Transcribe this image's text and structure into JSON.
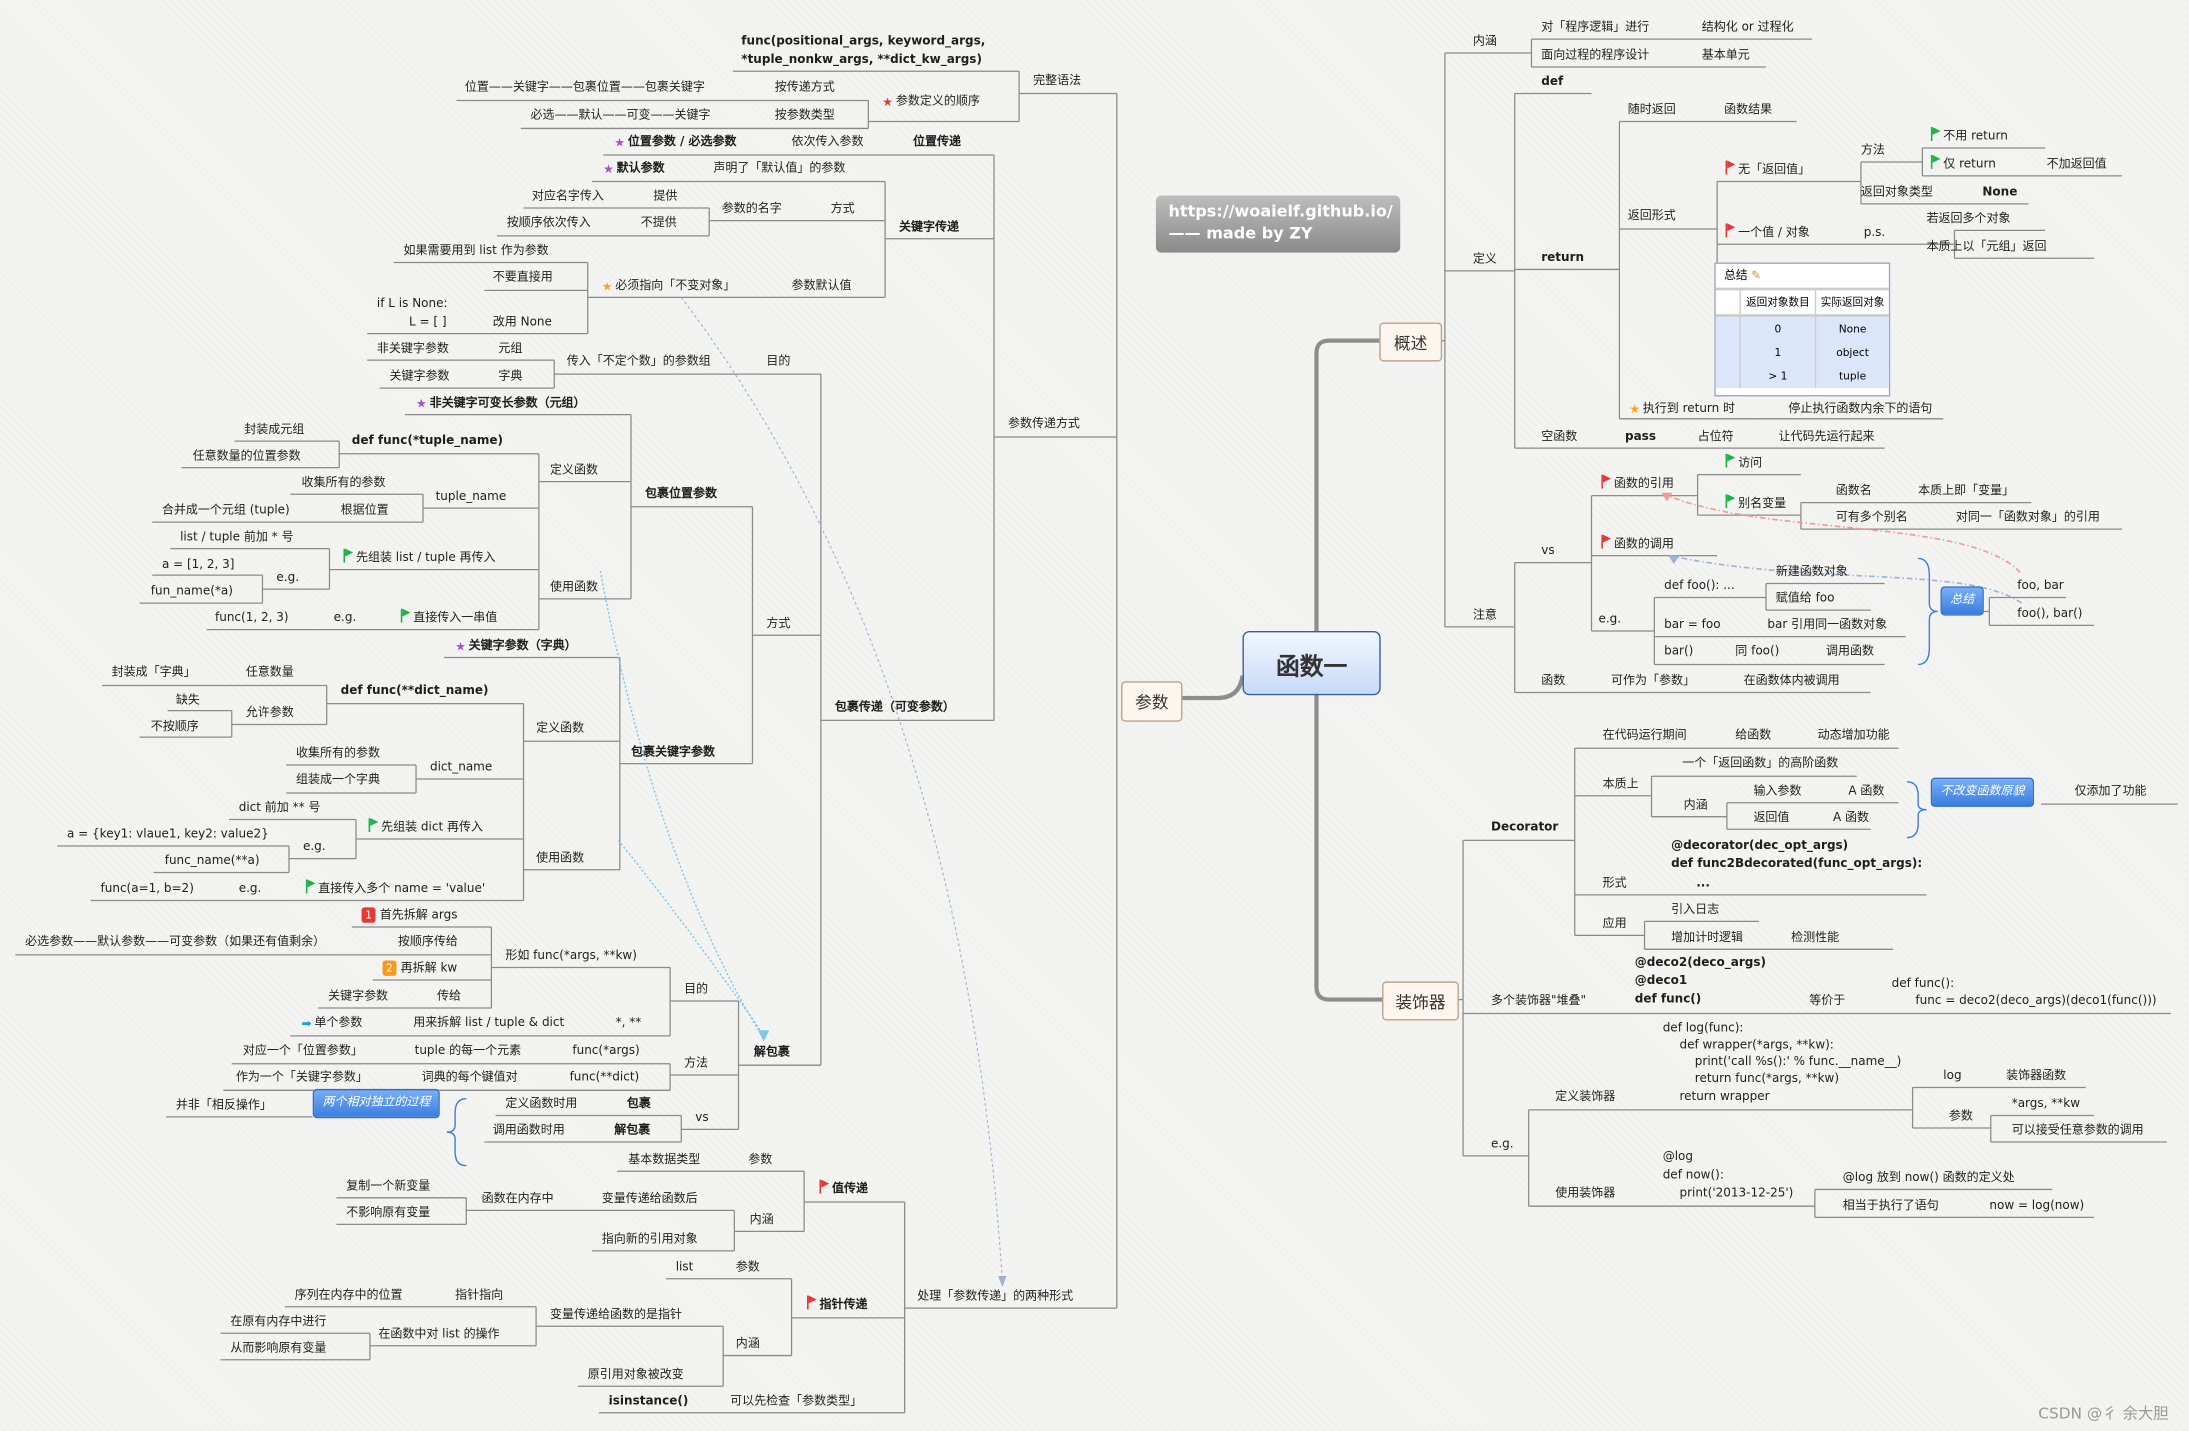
{
  "center": {
    "title": "函数一"
  },
  "banner": {
    "line1": "https://woaielf.github.io/",
    "line2": "—— made by ZY"
  },
  "branches": {
    "overview": "概述",
    "params": "参数",
    "decorator": "装饰器"
  },
  "watermark": "CSDN @彳 余大胆",
  "colors": {
    "center_border": "#3b5c9a",
    "connector": "#8a8a8a",
    "blue_box": "#3a7de0",
    "flag_red": "#e53935",
    "flag_green": "#1bb34a",
    "star_purple": "#a84fd6"
  },
  "params": {
    "nodes": [
      {
        "text": "func(positional_args, keyword_args,"
      },
      {
        "text": "*tuple_nonkw_args, **dict_kw_args)"
      },
      {
        "text": "完整语法"
      },
      {
        "text": "位置——关键字——包裹位置——包裹关键字"
      },
      {
        "text": "按传递方式"
      },
      {
        "text": "必选——默认——可变——关键字"
      },
      {
        "text": "按参数类型"
      },
      {
        "text": "参数定义的顺序",
        "icon": "star-red"
      },
      {
        "text": "位置参数 / 必选参数",
        "icon": "star-purple"
      },
      {
        "text": "依次传入参数"
      },
      {
        "text": "位置传递"
      },
      {
        "text": "默认参数",
        "icon": "star-purple"
      },
      {
        "text": "声明了「默认值」的参数"
      },
      {
        "text": "对应名字传入"
      },
      {
        "text": "提供"
      },
      {
        "text": "按顺序依次传入"
      },
      {
        "text": "不提供"
      },
      {
        "text": "参数的名字"
      },
      {
        "text": "方式"
      },
      {
        "text": "如果需要用到 list 作为参数"
      },
      {
        "text": "不要直接用"
      },
      {
        "text": "if L is None:"
      },
      {
        "text": "L = [ ]"
      },
      {
        "text": "改用 None"
      },
      {
        "text": "必须指向「不变对象」",
        "icon": "star-yellow"
      },
      {
        "text": "参数默认值"
      },
      {
        "text": "关键字传递"
      },
      {
        "text": "参数传递方式"
      },
      {
        "text": "非关键字参数"
      },
      {
        "text": "元组"
      },
      {
        "text": "关键字参数"
      },
      {
        "text": "字典"
      },
      {
        "text": "传入「不定个数」的参数组"
      },
      {
        "text": "目的"
      },
      {
        "text": "非关键字可变长参数（元组）",
        "icon": "star-purple"
      },
      {
        "text": "封装成元组"
      },
      {
        "text": "任意数量的位置参数"
      },
      {
        "text": "def func(*tuple_name)"
      },
      {
        "text": "收集所有的参数"
      },
      {
        "text": "合并成一个元组 (tuple)"
      },
      {
        "text": "根据位置"
      },
      {
        "text": "tuple_name"
      },
      {
        "text": "定义函数"
      },
      {
        "text": "list / tuple 前加 * 号"
      },
      {
        "text": "a = [1, 2, 3]"
      },
      {
        "text": "fun_name(*a)"
      },
      {
        "text": "e.g."
      },
      {
        "text": "先组装 list / tuple 再传入",
        "icon": "flag-green"
      },
      {
        "text": "func(1, 2, 3)"
      },
      {
        "text": "e.g."
      },
      {
        "text": "直接传入一串值",
        "icon": "flag-green"
      },
      {
        "text": "使用函数"
      },
      {
        "text": "包裹位置参数"
      },
      {
        "text": "关键字参数（字典）",
        "icon": "star-purple"
      },
      {
        "text": "封装成「字典」"
      },
      {
        "text": "任意数量"
      },
      {
        "text": "缺失"
      },
      {
        "text": "不按顺序"
      },
      {
        "text": "允许参数"
      },
      {
        "text": "def func(**dict_name)"
      },
      {
        "text": "收集所有的参数"
      },
      {
        "text": "组装成一个字典"
      },
      {
        "text": "dict_name"
      },
      {
        "text": "定义函数"
      },
      {
        "text": "dict 前加 ** 号"
      },
      {
        "text": "a = {key1: vlaue1, key2: value2}"
      },
      {
        "text": "func_name(**a)"
      },
      {
        "text": "e.g."
      },
      {
        "text": "先组装 dict 再传入",
        "icon": "flag-green"
      },
      {
        "text": "func(a=1, b=2)"
      },
      {
        "text": "e.g."
      },
      {
        "text": "直接传入多个 name = 'value'",
        "icon": "flag-green"
      },
      {
        "text": "使用函数"
      },
      {
        "text": "包裹关键字参数"
      },
      {
        "text": "方式"
      },
      {
        "text": "包裹传递（可变参数）"
      },
      {
        "text": "首先拆解 args",
        "icon": "badge-1",
        "badge": "1"
      },
      {
        "text": "必选参数——默认参数——可变参数（如果还有值剩余）"
      },
      {
        "text": "按顺序传给"
      },
      {
        "text": "再拆解 kw",
        "icon": "badge-2",
        "badge": "2"
      },
      {
        "text": "关键字参数"
      },
      {
        "text": "传给"
      },
      {
        "text": "形如 func(*args, **kw)"
      },
      {
        "text": "单个参数",
        "icon": "arrow-blue"
      },
      {
        "text": "用来拆解 list / tuple & dict"
      },
      {
        "text": "*, **"
      },
      {
        "text": "目的"
      },
      {
        "text": "对应一个「位置参数」"
      },
      {
        "text": "tuple 的每一个元素"
      },
      {
        "text": "func(*args)"
      },
      {
        "text": "作为一个「关键字参数」"
      },
      {
        "text": "词典的每个键值对"
      },
      {
        "text": "func(**dict)"
      },
      {
        "text": "方法"
      },
      {
        "text": "并非「相反操作」"
      },
      {
        "text": "两个相对独立的过程"
      },
      {
        "text": "定义函数时用"
      },
      {
        "text": "包裹"
      },
      {
        "text": "调用函数时用"
      },
      {
        "text": "解包裹"
      },
      {
        "text": "vs"
      },
      {
        "text": "解包裹"
      },
      {
        "text": "基本数据类型"
      },
      {
        "text": "参数"
      },
      {
        "text": "复制一个新变量"
      },
      {
        "text": "不影响原有变量"
      },
      {
        "text": "函数在内存中"
      },
      {
        "text": "变量传递给函数后"
      },
      {
        "text": "指向新的引用对象"
      },
      {
        "text": "内涵"
      },
      {
        "text": "值传递",
        "icon": "flag-red"
      },
      {
        "text": "list"
      },
      {
        "text": "参数"
      },
      {
        "text": "序列在内存中的位置"
      },
      {
        "text": "指针指向"
      },
      {
        "text": "在原有内存中进行"
      },
      {
        "text": "从而影响原有变量"
      },
      {
        "text": "在函数中对 list 的操作"
      },
      {
        "text": "变量传递给函数的是指针"
      },
      {
        "text": "原引用对象被改变"
      },
      {
        "text": "内涵"
      },
      {
        "text": "指针传递",
        "icon": "flag-red"
      },
      {
        "text": "isinstance()"
      },
      {
        "text": "可以先检查「参数类型」"
      },
      {
        "text": "处理「参数传递」的两种形式"
      }
    ]
  },
  "overview": {
    "nodes": [
      {
        "text": "内涵"
      },
      {
        "text": "对「程序逻辑」进行"
      },
      {
        "text": "结构化 or 过程化"
      },
      {
        "text": "面向过程的程序设计"
      },
      {
        "text": "基本单元"
      },
      {
        "text": "定义"
      },
      {
        "text": "def"
      },
      {
        "text": "return"
      },
      {
        "text": "随时返回"
      },
      {
        "text": "函数结果"
      },
      {
        "text": "返回形式"
      },
      {
        "text": "无「返回值」",
        "icon": "flag-red"
      },
      {
        "text": "方法"
      },
      {
        "text": "不用 return",
        "icon": "flag-green"
      },
      {
        "text": "仅 return",
        "icon": "flag-green"
      },
      {
        "text": "不加返回值"
      },
      {
        "text": "返回对象类型"
      },
      {
        "text": "None"
      },
      {
        "text": "一个值 / 对象",
        "icon": "flag-red"
      },
      {
        "text": "p.s."
      },
      {
        "text": "若返回多个对象"
      },
      {
        "text": "本质上以「元组」返回"
      },
      {
        "text": "执行到 return 时",
        "icon": "star-yellow"
      },
      {
        "text": "停止执行函数内余下的语句"
      },
      {
        "text": "空函数"
      },
      {
        "text": "pass"
      },
      {
        "text": "占位符"
      },
      {
        "text": "让代码先运行起来"
      },
      {
        "text": "注意"
      },
      {
        "text": "vs"
      },
      {
        "text": "函数的引用",
        "icon": "flag-red"
      },
      {
        "text": "访问",
        "icon": "flag-green"
      },
      {
        "text": "别名变量",
        "icon": "flag-green"
      },
      {
        "text": "函数名"
      },
      {
        "text": "本质上即「变量」"
      },
      {
        "text": "可有多个别名"
      },
      {
        "text": "对同一「函数对象」的引用"
      },
      {
        "text": "函数的调用",
        "icon": "flag-red"
      },
      {
        "text": "e.g."
      },
      {
        "text": "def foo(): ..."
      },
      {
        "text": "新建函数对象"
      },
      {
        "text": "赋值给 foo"
      },
      {
        "text": "bar = foo"
      },
      {
        "text": "bar 引用同一函数对象"
      },
      {
        "text": "bar()"
      },
      {
        "text": "同 foo()"
      },
      {
        "text": "调用函数"
      },
      {
        "text": "总结"
      },
      {
        "text": "foo, bar"
      },
      {
        "text": "foo(), bar()"
      },
      {
        "text": "函数"
      },
      {
        "text": "可作为「参数」"
      },
      {
        "text": "在函数体内被调用"
      }
    ],
    "summary_table": {
      "title": "总结",
      "headers": [
        "",
        "返回对象数目",
        "实际返回对象"
      ],
      "rows": [
        [
          "",
          "0",
          "None"
        ],
        [
          "",
          "1",
          "object"
        ],
        [
          "",
          "> 1",
          "tuple"
        ]
      ]
    }
  },
  "decorator": {
    "nodes": [
      {
        "text": "Decorator"
      },
      {
        "text": "在代码运行期间"
      },
      {
        "text": "给函数"
      },
      {
        "text": "动态增加功能"
      },
      {
        "text": "本质上"
      },
      {
        "text": "一个「返回函数」的高阶函数"
      },
      {
        "text": "内涵"
      },
      {
        "text": "输入参数"
      },
      {
        "text": "A 函数"
      },
      {
        "text": "返回值"
      },
      {
        "text": "A 函数"
      },
      {
        "text": "不改变函数原貌"
      },
      {
        "text": "仅添加了功能"
      },
      {
        "text": "形式"
      },
      {
        "text": "@decorator(dec_opt_args)"
      },
      {
        "text": "def func2Bdecorated(func_opt_args):"
      },
      {
        "text": "..."
      },
      {
        "text": "应用"
      },
      {
        "text": "引入日志"
      },
      {
        "text": "增加计时逻辑"
      },
      {
        "text": "检测性能"
      },
      {
        "text": "多个装饰器\"堆叠\""
      },
      {
        "text": "@deco2(deco_args)"
      },
      {
        "text": "@deco1"
      },
      {
        "text": "def func()"
      },
      {
        "text": "等价于"
      },
      {
        "text": "def func():"
      },
      {
        "text": "func = deco2(deco_args)(deco1(func()))"
      },
      {
        "text": "e.g."
      },
      {
        "text": "定义装饰器"
      },
      {
        "text": "def log(func):"
      },
      {
        "text": "def wrapper(*args, **kw):"
      },
      {
        "text": "print('call %s():' % func.__name__)"
      },
      {
        "text": "return func(*args, **kw)"
      },
      {
        "text": "return wrapper"
      },
      {
        "text": "log"
      },
      {
        "text": "装饰器函数"
      },
      {
        "text": "参数"
      },
      {
        "text": "*args, **kw"
      },
      {
        "text": "可以接受任意参数的调用"
      },
      {
        "text": "使用装饰器"
      },
      {
        "text": "@log"
      },
      {
        "text": "def now():"
      },
      {
        "text": "print('2013-12-25')"
      },
      {
        "text": "@log 放到 now() 函数的定义处"
      },
      {
        "text": "相当于执行了语句"
      },
      {
        "text": "now = log(now)"
      }
    ]
  }
}
